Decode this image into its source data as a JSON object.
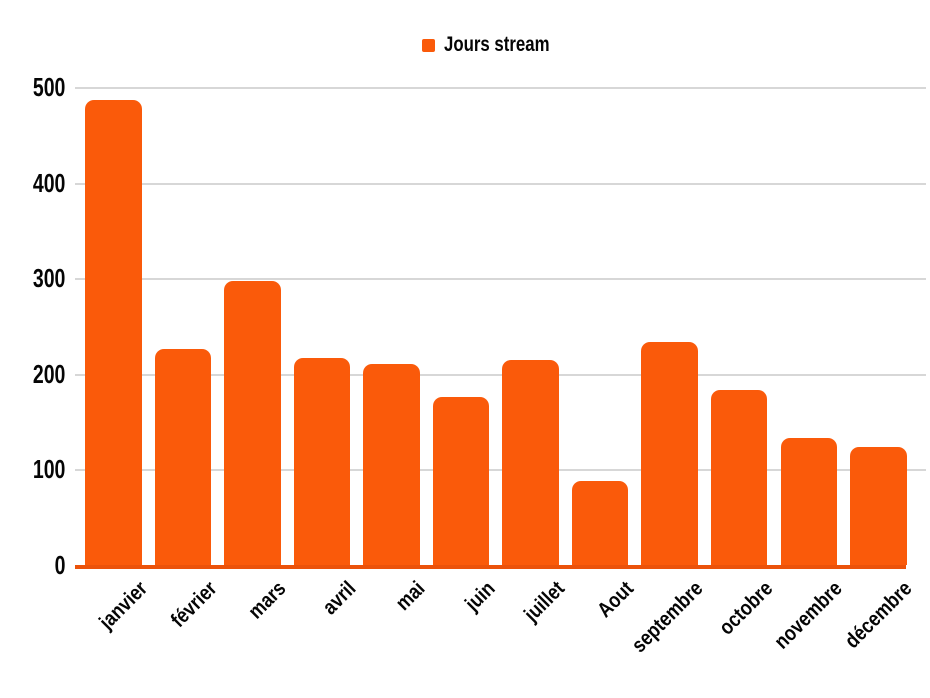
{
  "chart_data": {
    "type": "bar",
    "title": "",
    "series_label": "Jours stream",
    "categories": [
      "janvier",
      "février",
      "mars",
      "avril",
      "mai",
      "juin",
      "juillet",
      "Aout",
      "septembre",
      "octobre",
      "novembre",
      "décembre"
    ],
    "values": [
      487,
      227,
      298,
      217,
      211,
      176,
      215,
      88,
      234,
      184,
      133,
      124
    ],
    "xlabel": "",
    "ylabel": "",
    "ylim": [
      0,
      500
    ],
    "yticks": [
      0,
      100,
      200,
      300,
      400,
      500
    ],
    "grid": "horizontal",
    "legend_position": "top-center",
    "colors": {
      "bar": "#FA5A0A",
      "axis_line": "#EB520A",
      "gridline": "#D7D7D7",
      "text": "#050505",
      "background": "#FFFFFF"
    }
  }
}
